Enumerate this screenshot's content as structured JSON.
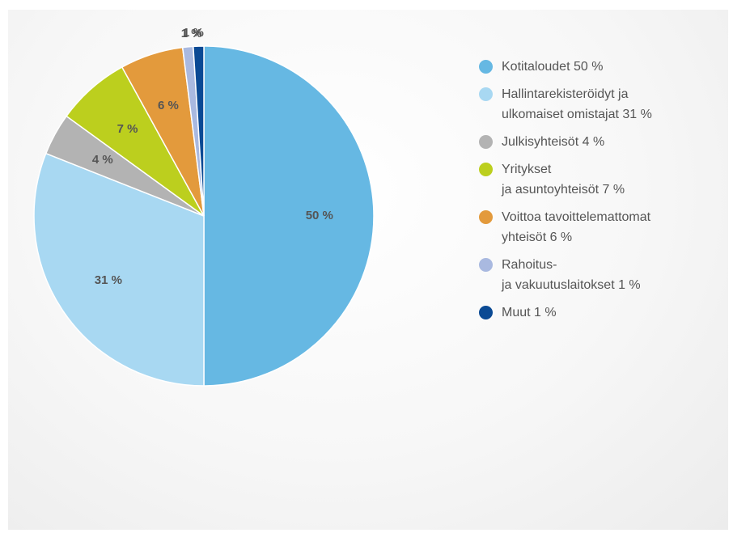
{
  "chart_data": {
    "type": "pie",
    "categories": [
      "Kotitaloudet 50 %",
      "Hallintarekisteröidyt ja\nulkomaiset omistajat 31 %",
      "Julkisyhteisöt 4 %",
      "Yritykset\nja asuntoyhteisöt 7 %",
      "Voittoa tavoittelemattomat\nyhteisöt 6 %",
      "Rahoitus-\nja vakuutuslaitokset 1 %",
      "Muut 1 %"
    ],
    "values": [
      50,
      31,
      4,
      7,
      6,
      1,
      1
    ],
    "value_labels": [
      "50 %",
      "31 %",
      "4 %",
      "7 %",
      "6 %",
      "1 %",
      "1 %"
    ],
    "colors": [
      "#66b8e3",
      "#a8d8f2",
      "#b3b3b3",
      "#bccf1e",
      "#e39a3c",
      "#a9b9e0",
      "#0b4a94"
    ]
  }
}
